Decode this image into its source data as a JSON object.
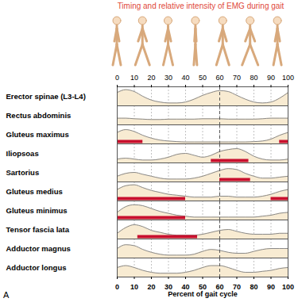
{
  "chart_data": {
    "type": "area",
    "title": "Timing and relative intensity of EMG during gait",
    "x_label": "Percent of gait cycle",
    "panel_label": "A",
    "color": "#f8ebd2",
    "grid": true,
    "tick_labels": "x",
    "xlim": [
      0,
      100
    ],
    "xticks": [
      0,
      10,
      20,
      30,
      40,
      50,
      60,
      70,
      80,
      90,
      100
    ],
    "ylim": [
      0,
      1
    ],
    "dashed_line_x": 60,
    "x": [
      0,
      5,
      10,
      15,
      20,
      25,
      30,
      35,
      40,
      45,
      50,
      55,
      60,
      65,
      70,
      75,
      80,
      85,
      90,
      95,
      100
    ],
    "series": [
      {
        "name": "Erector spinae (L3-L4)",
        "values": [
          0.7,
          0.85,
          0.75,
          0.5,
          0.3,
          0.2,
          0.15,
          0.15,
          0.2,
          0.35,
          0.55,
          0.7,
          0.8,
          0.75,
          0.55,
          0.35,
          0.2,
          0.15,
          0.2,
          0.4,
          0.7
        ],
        "bars": []
      },
      {
        "name": "Rectus abdominis",
        "values": [
          0.35,
          0.35,
          0.32,
          0.3,
          0.28,
          0.28,
          0.3,
          0.3,
          0.3,
          0.3,
          0.32,
          0.32,
          0.32,
          0.3,
          0.3,
          0.3,
          0.3,
          0.32,
          0.35,
          0.35,
          0.35
        ],
        "bars": []
      },
      {
        "name": "Gluteus maximus",
        "values": [
          0.6,
          0.75,
          0.65,
          0.45,
          0.3,
          0.2,
          0.15,
          0.12,
          0.1,
          0.1,
          0.1,
          0.1,
          0.1,
          0.1,
          0.1,
          0.1,
          0.12,
          0.15,
          0.25,
          0.45,
          0.6
        ],
        "bars": [
          [
            0,
            15
          ],
          [
            95,
            100
          ]
        ]
      },
      {
        "name": "Iliopsoas",
        "values": [
          0.2,
          0.25,
          0.2,
          0.15,
          0.15,
          0.2,
          0.3,
          0.45,
          0.5,
          0.4,
          0.3,
          0.4,
          0.6,
          0.7,
          0.75,
          0.6,
          0.35,
          0.2,
          0.15,
          0.15,
          0.2
        ],
        "bars": [
          [
            55,
            77
          ]
        ]
      },
      {
        "name": "Sartorius",
        "values": [
          0.3,
          0.45,
          0.5,
          0.4,
          0.3,
          0.2,
          0.15,
          0.15,
          0.15,
          0.2,
          0.3,
          0.45,
          0.6,
          0.7,
          0.65,
          0.45,
          0.3,
          0.2,
          0.2,
          0.25,
          0.3
        ],
        "bars": [
          [
            60,
            78
          ]
        ]
      },
      {
        "name": "Gluteus medius",
        "values": [
          0.6,
          0.8,
          0.85,
          0.7,
          0.55,
          0.45,
          0.35,
          0.3,
          0.25,
          0.2,
          0.2,
          0.2,
          0.25,
          0.25,
          0.2,
          0.2,
          0.2,
          0.25,
          0.35,
          0.5,
          0.6
        ],
        "bars": [
          [
            0,
            40
          ],
          [
            90,
            100
          ]
        ]
      },
      {
        "name": "Gluteus minimus",
        "values": [
          0.4,
          0.7,
          0.8,
          0.75,
          0.6,
          0.45,
          0.35,
          0.25,
          0.2,
          0.15,
          0.15,
          0.15,
          0.15,
          0.15,
          0.15,
          0.15,
          0.15,
          0.2,
          0.25,
          0.35,
          0.4
        ],
        "bars": [
          [
            0,
            40
          ]
        ]
      },
      {
        "name": "Tensor fascia lata",
        "values": [
          0.3,
          0.6,
          0.75,
          0.65,
          0.45,
          0.35,
          0.25,
          0.2,
          0.2,
          0.2,
          0.25,
          0.35,
          0.45,
          0.5,
          0.4,
          0.3,
          0.25,
          0.25,
          0.25,
          0.3,
          0.3
        ],
        "bars": [
          [
            12,
            47
          ]
        ]
      },
      {
        "name": "Adductor magnus",
        "values": [
          0.5,
          0.7,
          0.65,
          0.45,
          0.3,
          0.2,
          0.15,
          0.15,
          0.15,
          0.2,
          0.35,
          0.45,
          0.4,
          0.3,
          0.25,
          0.25,
          0.35,
          0.45,
          0.5,
          0.5,
          0.5
        ],
        "bars": []
      },
      {
        "name": "Adductor longus",
        "values": [
          0.5,
          0.6,
          0.5,
          0.35,
          0.25,
          0.2,
          0.2,
          0.2,
          0.25,
          0.35,
          0.5,
          0.6,
          0.6,
          0.5,
          0.35,
          0.25,
          0.25,
          0.3,
          0.35,
          0.45,
          0.5
        ],
        "bars": []
      }
    ]
  }
}
